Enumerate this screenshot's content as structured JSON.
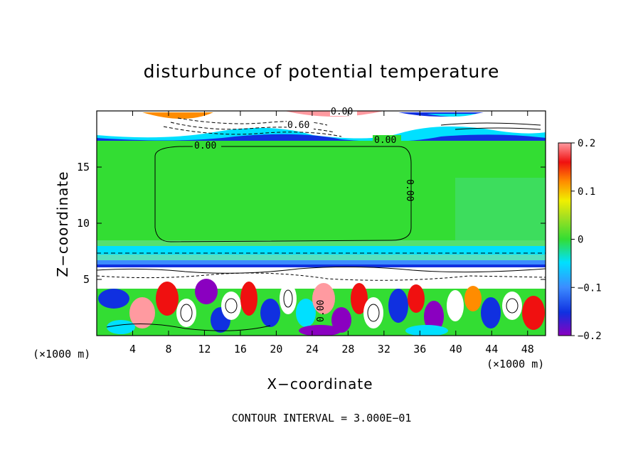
{
  "chart_data": {
    "type": "heatmap",
    "title": "disturbunce of potential temperature",
    "xlabel": "X−coordinate",
    "ylabel": "Z−coordinate",
    "x_unit": "(×1000 m)",
    "xlim": [
      0,
      50
    ],
    "ylim": [
      0,
      20
    ],
    "x_ticks": [
      4,
      8,
      12,
      16,
      20,
      24,
      28,
      32,
      36,
      40,
      44,
      48
    ],
    "y_ticks": [
      5,
      10,
      15
    ],
    "colorbar": {
      "range": [
        -0.2,
        0.2
      ],
      "ticks": [
        0.2,
        0.1,
        0,
        -0.1,
        -0.2
      ],
      "tick_labels": [
        "0.2",
        "0.1",
        "0",
        "−0.1",
        "−0.2"
      ]
    },
    "contour_labels": [
      "0.00",
      "0.60",
      "0.00",
      "0.00",
      "0.00",
      "0.00"
    ],
    "contour_interval_text": "CONTOUR INTERVAL = 3.000E−01",
    "colors": {
      "violet": "#8a00c0",
      "blue": "#1030e0",
      "lightblue": "#3c8cff",
      "cyan": "#00e0ff",
      "green": "#33dd33",
      "yellowgreen": "#a8e020",
      "yellow": "#f0f000",
      "orange": "#ff8c00",
      "red": "#f01010",
      "pink": "#ff9aa0"
    }
  }
}
